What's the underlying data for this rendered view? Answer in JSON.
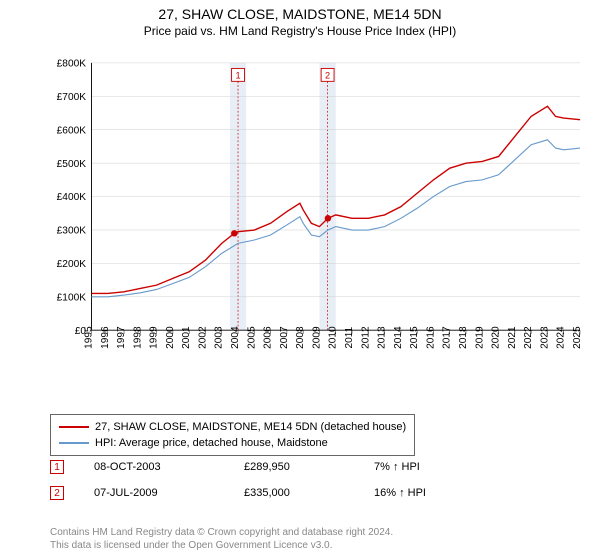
{
  "title": "27, SHAW CLOSE, MAIDSTONE, ME14 5DN",
  "subtitle": "Price paid vs. HM Land Registry's House Price Index (HPI)",
  "chart": {
    "type": "line",
    "background_color": "#ffffff",
    "grid_color": "#cccccc",
    "xlim": [
      1995,
      2025
    ],
    "ylim": [
      0,
      800000
    ],
    "x_ticks": [
      1995,
      1996,
      1997,
      1998,
      1999,
      2000,
      2001,
      2002,
      2003,
      2004,
      2005,
      2006,
      2007,
      2008,
      2009,
      2010,
      2011,
      2012,
      2013,
      2014,
      2015,
      2016,
      2017,
      2018,
      2019,
      2020,
      2021,
      2022,
      2023,
      2024,
      2025
    ],
    "y_ticks": [
      0,
      100000,
      200000,
      300000,
      400000,
      500000,
      600000,
      700000,
      800000
    ],
    "y_tick_labels": [
      "£0",
      "£100K",
      "£200K",
      "£300K",
      "£400K",
      "£500K",
      "£600K",
      "£700K",
      "£800K"
    ],
    "label_fontsize": 11,
    "band_color": "#e8eef5",
    "bands": [
      {
        "start": 2003.5,
        "end": 2004.5,
        "label": "1"
      },
      {
        "start": 2009.0,
        "end": 2010.0,
        "label": "2"
      }
    ],
    "series": [
      {
        "name": "27, SHAW CLOSE, MAIDSTONE, ME14 5DN (detached house)",
        "color": "#cc0000",
        "line_width": 1.5,
        "data": [
          [
            1995,
            110000
          ],
          [
            1996,
            110000
          ],
          [
            1997,
            115000
          ],
          [
            1998,
            125000
          ],
          [
            1999,
            135000
          ],
          [
            2000,
            155000
          ],
          [
            2001,
            175000
          ],
          [
            2002,
            210000
          ],
          [
            2003,
            260000
          ],
          [
            2003.77,
            289950
          ],
          [
            2004,
            295000
          ],
          [
            2005,
            300000
          ],
          [
            2006,
            320000
          ],
          [
            2007,
            355000
          ],
          [
            2007.8,
            380000
          ],
          [
            2008,
            360000
          ],
          [
            2008.5,
            320000
          ],
          [
            2009,
            310000
          ],
          [
            2009.52,
            335000
          ],
          [
            2010,
            345000
          ],
          [
            2011,
            335000
          ],
          [
            2012,
            335000
          ],
          [
            2013,
            345000
          ],
          [
            2014,
            370000
          ],
          [
            2015,
            410000
          ],
          [
            2016,
            450000
          ],
          [
            2017,
            485000
          ],
          [
            2018,
            500000
          ],
          [
            2019,
            505000
          ],
          [
            2020,
            520000
          ],
          [
            2021,
            580000
          ],
          [
            2022,
            640000
          ],
          [
            2023,
            670000
          ],
          [
            2023.5,
            640000
          ],
          [
            2024,
            635000
          ],
          [
            2025,
            630000
          ]
        ]
      },
      {
        "name": "HPI: Average price, detached house, Maidstone",
        "color": "#6699cc",
        "line_width": 1.2,
        "data": [
          [
            1995,
            100000
          ],
          [
            1996,
            100000
          ],
          [
            1997,
            105000
          ],
          [
            1998,
            112000
          ],
          [
            1999,
            122000
          ],
          [
            2000,
            140000
          ],
          [
            2001,
            158000
          ],
          [
            2002,
            190000
          ],
          [
            2003,
            230000
          ],
          [
            2004,
            260000
          ],
          [
            2005,
            270000
          ],
          [
            2006,
            285000
          ],
          [
            2007,
            315000
          ],
          [
            2007.8,
            340000
          ],
          [
            2008,
            320000
          ],
          [
            2008.5,
            285000
          ],
          [
            2009,
            280000
          ],
          [
            2009.52,
            300000
          ],
          [
            2010,
            310000
          ],
          [
            2011,
            300000
          ],
          [
            2012,
            300000
          ],
          [
            2013,
            310000
          ],
          [
            2014,
            335000
          ],
          [
            2015,
            365000
          ],
          [
            2016,
            400000
          ],
          [
            2017,
            430000
          ],
          [
            2018,
            445000
          ],
          [
            2019,
            450000
          ],
          [
            2020,
            465000
          ],
          [
            2021,
            510000
          ],
          [
            2022,
            555000
          ],
          [
            2023,
            570000
          ],
          [
            2023.5,
            545000
          ],
          [
            2024,
            540000
          ],
          [
            2025,
            545000
          ]
        ]
      }
    ],
    "markers": [
      {
        "x": 2003.77,
        "y": 289950,
        "color": "#cc0000"
      },
      {
        "x": 2009.52,
        "y": 335000,
        "color": "#cc0000"
      }
    ],
    "marker_radius": 3.5
  },
  "legend": {
    "series1": "27, SHAW CLOSE, MAIDSTONE, ME14 5DN (detached house)",
    "series2": "HPI: Average price, detached house, Maidstone"
  },
  "transactions": [
    {
      "badge": "1",
      "date": "08-OCT-2003",
      "price": "£289,950",
      "pct": "7% ↑ HPI"
    },
    {
      "badge": "2",
      "date": "07-JUL-2009",
      "price": "£335,000",
      "pct": "16% ↑ HPI"
    }
  ],
  "footer": {
    "line1": "Contains HM Land Registry data © Crown copyright and database right 2024.",
    "line2": "This data is licensed under the Open Government Licence v3.0."
  }
}
